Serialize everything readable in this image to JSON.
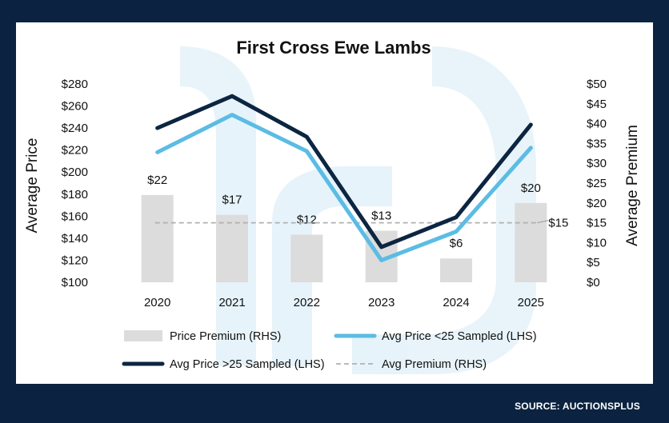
{
  "source": "SOURCE: AUCTIONSPLUS",
  "chart_data": {
    "type": "bar+line",
    "title": "First Cross Ewe Lambs",
    "categories": [
      "2020",
      "2021",
      "2022",
      "2023",
      "2024",
      "2025"
    ],
    "ylabel_left": "Average Price",
    "ylabel_right": "Average Premium",
    "ylim_left": [
      100,
      280
    ],
    "ylim_right": [
      0,
      50
    ],
    "left_ticks": [
      "$100",
      "$120",
      "$140",
      "$160",
      "$180",
      "$200",
      "$220",
      "$240",
      "$260",
      "$280"
    ],
    "right_ticks": [
      "$0",
      "$5",
      "$10",
      "$15",
      "$20",
      "$25",
      "$30",
      "$35",
      "$40",
      "$45",
      "$50"
    ],
    "series": [
      {
        "name": "Price Premium (RHS)",
        "type": "bar",
        "axis": "right",
        "color": "#dcdcdc",
        "values": [
          22,
          17,
          12,
          13,
          6,
          20
        ],
        "labels": [
          "$22",
          "$17",
          "$12",
          "$13",
          "$6",
          "$20"
        ]
      },
      {
        "name": "Avg Price <25 Sampled (LHS)",
        "type": "line",
        "axis": "left",
        "color": "#5bbce4",
        "values": [
          218,
          252,
          219,
          120,
          146,
          222
        ]
      },
      {
        "name": "Avg Price >25 Sampled (LHS)",
        "type": "line",
        "axis": "left",
        "color": "#0c2541",
        "values": [
          240,
          269,
          232,
          132,
          159,
          243
        ]
      },
      {
        "name": "Avg Premium (RHS)",
        "type": "dashed-line",
        "axis": "right",
        "color": "#b0b0b0",
        "value": 15,
        "label": "$15"
      }
    ]
  }
}
